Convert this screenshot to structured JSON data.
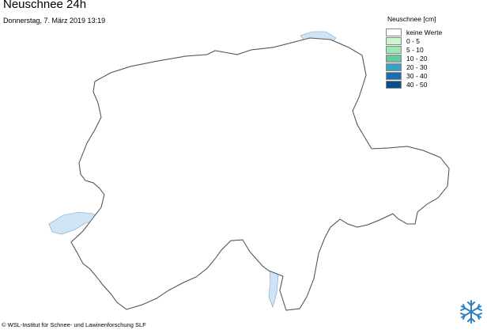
{
  "title": "Neuschnee 24h",
  "subtitle": "Donnerstag, 7. März 2019 13:19",
  "legend": {
    "title": "Neuschnee [cm]",
    "items": [
      {
        "label": "keine Werte",
        "color": "#ffffff"
      },
      {
        "label": "0 - 5",
        "color": "#ccf5cc"
      },
      {
        "label": "5 - 10",
        "color": "#99e8b3"
      },
      {
        "label": "10 - 20",
        "color": "#66c8a3"
      },
      {
        "label": "20 - 30",
        "color": "#3a9fc4"
      },
      {
        "label": "30 - 40",
        "color": "#1b6fb0"
      },
      {
        "label": "40 - 50",
        "color": "#0a4f8a"
      }
    ]
  },
  "credit": "© WSL-Institut für Schnee- und Lawinenforschung SLF",
  "logo_icon": "snowflake-icon",
  "colors": {
    "lakes": "#cfe4f5",
    "border": "#555555",
    "inner_border": "#aaaaaa"
  }
}
